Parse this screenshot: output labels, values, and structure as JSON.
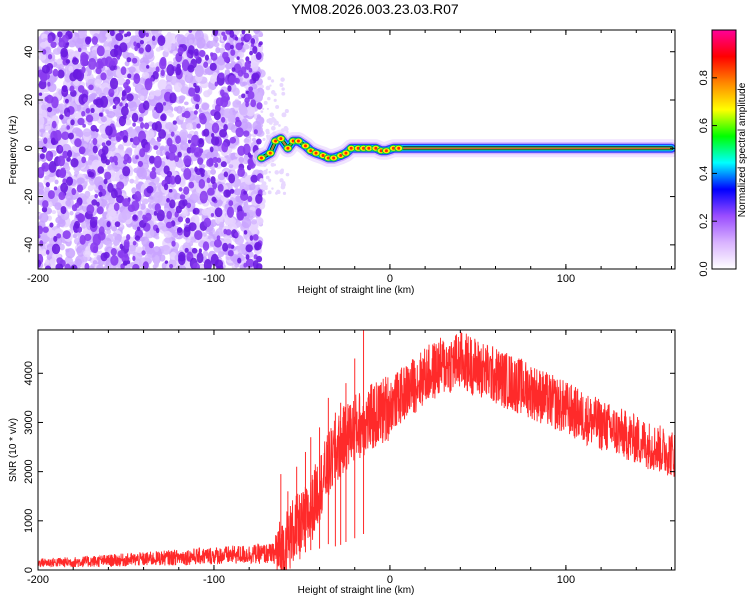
{
  "title": "YM08.2026.003.23.03.R07",
  "chart_data": [
    {
      "type": "heatmap",
      "name": "spectrogram",
      "xlabel": "Height of straight line (km)",
      "ylabel": "Frequency (Hz)",
      "xlim": [
        -200,
        162
      ],
      "ylim": [
        -50,
        49
      ],
      "xticks": [
        -200,
        -100,
        0,
        100
      ],
      "yticks": [
        -40,
        -20,
        0,
        20,
        40
      ],
      "noise_region_x": [
        -200,
        -73
      ],
      "signal_onset_x": -73,
      "center_frequency_trace": {
        "x": [
          -73,
          -68,
          -65,
          -62,
          -58,
          -55,
          -52,
          -48,
          -45,
          -42,
          -38,
          -35,
          -32,
          -28,
          -25,
          -22,
          -18,
          -15,
          -12,
          -8,
          -5,
          -2,
          2,
          5,
          10,
          20,
          40,
          60,
          80,
          100,
          120,
          140,
          160
        ],
        "y": [
          -4,
          -2,
          3,
          4,
          0,
          3,
          3,
          1,
          -1,
          -2,
          -3,
          -4,
          -4,
          -3,
          -2,
          0,
          0,
          0,
          0,
          0,
          -1,
          -1,
          0,
          0,
          0,
          0,
          0,
          0,
          0,
          0,
          0,
          0,
          0
        ]
      },
      "colorbar": {
        "label": "Normalized spectral amplitude",
        "range": [
          0,
          1
        ],
        "ticks": [
          "0.0",
          "0.2",
          "0.4",
          "0.6",
          "0.8"
        ],
        "colors": [
          "#ffffff",
          "#d9b3ff",
          "#9a4dff",
          "#0000ff",
          "#00ffff",
          "#00ff00",
          "#ffff00",
          "#ff8800",
          "#ff0000",
          "#ff0099"
        ]
      }
    },
    {
      "type": "line",
      "name": "snr",
      "xlabel": "Height of straight line (km)",
      "ylabel": "SNR (10 * v/v)",
      "xlim": [
        -200,
        162
      ],
      "ylim": [
        0,
        4880
      ],
      "xticks": [
        -200,
        -100,
        0,
        100
      ],
      "yticks": [
        0,
        1000,
        2000,
        3000,
        4000
      ],
      "color": "#ff2a2a",
      "envelope": {
        "x": [
          -200,
          -180,
          -160,
          -140,
          -120,
          -100,
          -80,
          -70,
          -62,
          -58,
          -55,
          -50,
          -45,
          -40,
          -35,
          -30,
          -25,
          -20,
          -15,
          -10,
          -5,
          0,
          5,
          10,
          15,
          20,
          25,
          30,
          35,
          40,
          45,
          50,
          60,
          70,
          80,
          90,
          100,
          110,
          120,
          130,
          140,
          150,
          162
        ],
        "values": [
          150,
          160,
          190,
          220,
          260,
          290,
          320,
          330,
          340,
          600,
          800,
          900,
          1200,
          1700,
          2100,
          2450,
          2700,
          2900,
          3000,
          3100,
          3200,
          3350,
          3500,
          3650,
          3800,
          3950,
          4050,
          4150,
          4200,
          4250,
          4200,
          4100,
          3950,
          3800,
          3650,
          3450,
          3300,
          3100,
          2950,
          2800,
          2650,
          2500,
          2350
        ]
      },
      "spikes": [
        {
          "x": -62,
          "value": 1950
        },
        {
          "x": -58,
          "value": 1600
        },
        {
          "x": -53,
          "value": 2100
        },
        {
          "x": -48,
          "value": 2400
        },
        {
          "x": -45,
          "value": 2700
        },
        {
          "x": -40,
          "value": 2900
        },
        {
          "x": -35,
          "value": 3500
        },
        {
          "x": -31,
          "value": 3200
        },
        {
          "x": -28,
          "value": 3400
        },
        {
          "x": -25,
          "value": 3800
        },
        {
          "x": -20,
          "value": 4300
        },
        {
          "x": -15,
          "value": 4880
        }
      ]
    }
  ]
}
